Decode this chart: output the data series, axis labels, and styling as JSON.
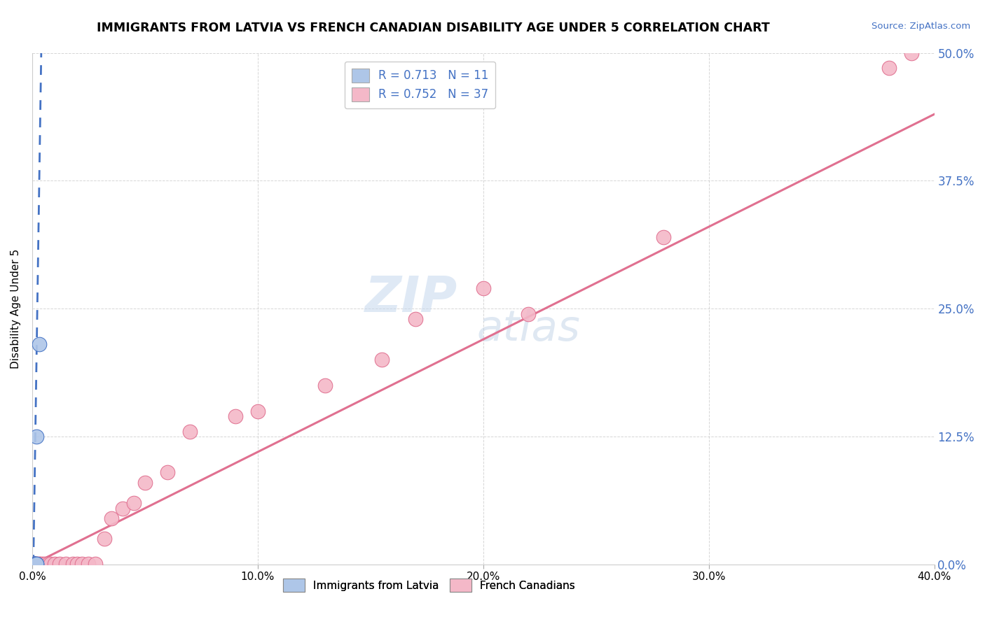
{
  "title": "IMMIGRANTS FROM LATVIA VS FRENCH CANADIAN DISABILITY AGE UNDER 5 CORRELATION CHART",
  "source": "Source: ZipAtlas.com",
  "ylabel": "Disability Age Under 5",
  "legend_1_r": "0.713",
  "legend_1_n": "11",
  "legend_2_r": "0.752",
  "legend_2_n": "37",
  "legend_color_1": "#aec6e8",
  "legend_color_2": "#f4b8c8",
  "blue_color": "#4472C4",
  "pink_color": "#E07090",
  "scatter_blue_color": "#aec6e8",
  "scatter_pink_color": "#f4b8c8",
  "latvian_x": [
    0.001,
    0.001,
    0.001,
    0.001,
    0.001,
    0.001,
    0.001,
    0.002,
    0.002,
    0.002,
    0.003
  ],
  "latvian_y": [
    0.001,
    0.001,
    0.001,
    0.001,
    0.001,
    0.001,
    0.001,
    0.001,
    0.001,
    0.125,
    0.215
  ],
  "french_x": [
    0.001,
    0.001,
    0.001,
    0.002,
    0.002,
    0.003,
    0.003,
    0.004,
    0.005,
    0.006,
    0.007,
    0.008,
    0.01,
    0.012,
    0.015,
    0.018,
    0.02,
    0.022,
    0.025,
    0.028,
    0.032,
    0.035,
    0.04,
    0.045,
    0.05,
    0.06,
    0.07,
    0.09,
    0.1,
    0.13,
    0.155,
    0.17,
    0.2,
    0.22,
    0.28,
    0.38,
    0.39
  ],
  "french_y": [
    0.001,
    0.001,
    0.001,
    0.001,
    0.001,
    0.001,
    0.001,
    0.001,
    0.001,
    0.001,
    0.001,
    0.001,
    0.001,
    0.001,
    0.001,
    0.001,
    0.001,
    0.001,
    0.001,
    0.001,
    0.025,
    0.045,
    0.055,
    0.06,
    0.08,
    0.09,
    0.13,
    0.145,
    0.15,
    0.175,
    0.2,
    0.24,
    0.27,
    0.245,
    0.32,
    0.485,
    0.5
  ],
  "xlim": [
    0.0,
    0.4
  ],
  "ylim": [
    0.0,
    0.5
  ],
  "xticks": [
    0.0,
    0.1,
    0.2,
    0.3,
    0.4
  ],
  "yticks": [
    0.0,
    0.125,
    0.25,
    0.375,
    0.5
  ],
  "xtick_labels": [
    "0.0%",
    "10.0%",
    "20.0%",
    "30.0%",
    "40.0%"
  ],
  "ytick_labels": [
    "0.0%",
    "12.5%",
    "25.0%",
    "37.5%",
    "50.0%"
  ]
}
